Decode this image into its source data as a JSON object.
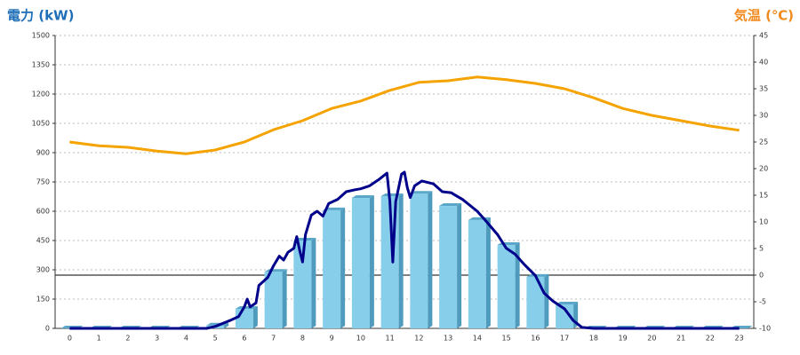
{
  "chart_data": {
    "type": "bar",
    "y_title": "電力 (kW)",
    "y2_title": "気温 (℃)",
    "categories": [
      "0",
      "1",
      "2",
      "3",
      "4",
      "5",
      "6",
      "7",
      "8",
      "9",
      "10",
      "11",
      "12",
      "13",
      "14",
      "15",
      "16",
      "17",
      "18",
      "19",
      "20",
      "21",
      "22",
      "23"
    ],
    "xlim": [
      -0.5,
      23.5
    ],
    "ylim": [
      0,
      1500
    ],
    "yticks": [
      0,
      150,
      300,
      450,
      600,
      750,
      900,
      1050,
      1200,
      1350,
      1500
    ],
    "y2lim": [
      -10,
      45
    ],
    "y2ticks": [
      -10,
      -5,
      0,
      5,
      10,
      15,
      20,
      25,
      30,
      35,
      40,
      45
    ],
    "grid": true,
    "title_color": "#1f6fb8",
    "y2_title_color": "#f08a1e",
    "series": [
      {
        "type": "bar",
        "color": "#87ceeb",
        "values": [
          0,
          0,
          0,
          0,
          0,
          15,
          100,
          290,
          450,
          605,
          668,
          677,
          690,
          627,
          555,
          427,
          264,
          123,
          0,
          0,
          0,
          0,
          0,
          0
        ]
      },
      {
        "type": "line",
        "color": "#00008b",
        "x": [
          0,
          4.7,
          5,
          5.5,
          5.8,
          6,
          6.1,
          6.2,
          6.4,
          6.5,
          6.8,
          7,
          7.2,
          7.35,
          7.5,
          7.7,
          7.8,
          7.9,
          8,
          8.1,
          8.3,
          8.5,
          8.7,
          8.9,
          9.2,
          9.5,
          9.8,
          10,
          10.3,
          10.6,
          10.9,
          11,
          11.1,
          11.2,
          11.4,
          11.5,
          11.6,
          11.7,
          11.85,
          12.1,
          12.5,
          12.8,
          13.1,
          13.5,
          14,
          14.3,
          14.7,
          15,
          15.3,
          15.6,
          16,
          16.3,
          16.6,
          17,
          17.3,
          17.6,
          18,
          23
        ],
        "values": [
          0,
          0,
          10,
          40,
          60,
          110,
          150,
          110,
          130,
          220,
          260,
          320,
          370,
          350,
          390,
          410,
          470,
          400,
          340,
          480,
          580,
          600,
          575,
          640,
          660,
          700,
          710,
          715,
          730,
          760,
          795,
          650,
          340,
          650,
          790,
          800,
          720,
          670,
          730,
          755,
          740,
          700,
          695,
          660,
          600,
          550,
          480,
          410,
          380,
          330,
          270,
          180,
          140,
          100,
          40,
          5,
          0,
          0
        ]
      },
      {
        "type": "line",
        "color": "#f5a300",
        "axis": "y2",
        "values": [
          25,
          24.3,
          24,
          23.3,
          22.8,
          23.5,
          25,
          27.3,
          29,
          31.3,
          32.7,
          34.7,
          36.2,
          36.5,
          37.2,
          36.7,
          36,
          35,
          33.3,
          31.3,
          30,
          29,
          28,
          27.2
        ]
      }
    ]
  }
}
